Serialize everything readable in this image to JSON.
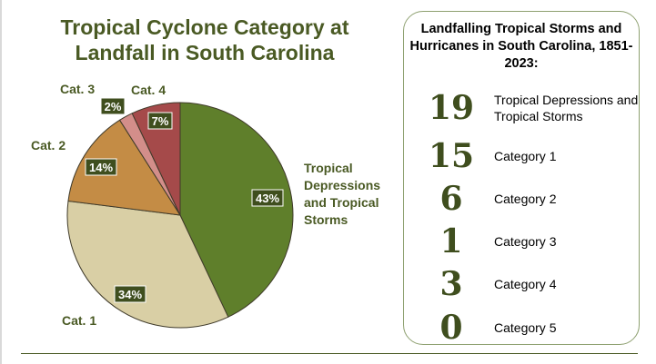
{
  "chart_data": {
    "type": "pie",
    "title": "Tropical Cyclone Category at Landfall in South Carolina",
    "slices": [
      {
        "label": "Tropical Depressions and Tropical Storms",
        "value": 43,
        "pct_label": "43%",
        "color": "#5f7f2b"
      },
      {
        "label": "Cat. 1",
        "value": 34,
        "pct_label": "34%",
        "color": "#d9cfa5"
      },
      {
        "label": "Cat. 2",
        "value": 14,
        "pct_label": "14%",
        "color": "#c48c45"
      },
      {
        "label": "Cat. 3",
        "value": 2,
        "pct_label": "2%",
        "color": "#d38e8a"
      },
      {
        "label": "Cat. 4",
        "value": 7,
        "pct_label": "7%",
        "color": "#a54a4a"
      }
    ],
    "start_angle_deg": 0,
    "direction": "clockwise"
  },
  "colors": {
    "title": "#4a5a24",
    "label_box": "#3f4e1e",
    "panel_border": "#8ea070",
    "number": "#3f4e1e"
  },
  "panel": {
    "title": "Landfalling Tropical Storms and Hurricanes in South Carolina, 1851-2023:",
    "rows": [
      {
        "number": "19",
        "label": "Tropical Depressions and Tropical Storms"
      },
      {
        "number": "15",
        "label": "Category 1"
      },
      {
        "number": "6",
        "label": "Category 2"
      },
      {
        "number": "1",
        "label": "Category 3"
      },
      {
        "number": "3",
        "label": "Category 4"
      },
      {
        "number": "0",
        "label": "Category 5"
      }
    ]
  }
}
